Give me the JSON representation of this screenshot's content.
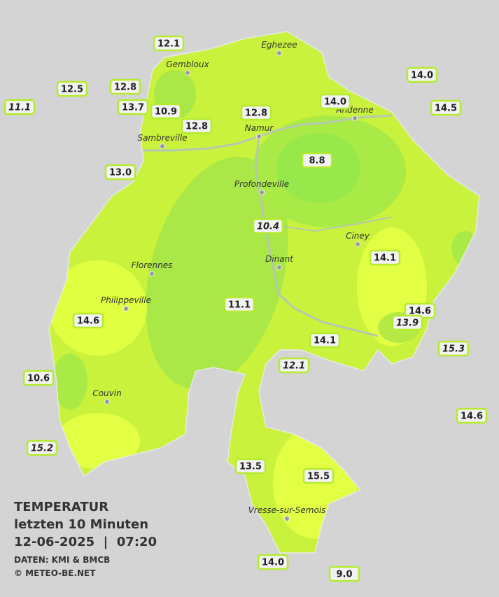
{
  "legend": {
    "title": "TEMPERATUR",
    "period": "letzten 10 Minuten",
    "datetime": "12-06-2025  |  07:20",
    "source": "DATEN: KMI & BMCB",
    "copyright": "© METEO-BE.NET"
  },
  "cities": [
    "Eghezee",
    "Gembloux",
    "Andenne",
    "Namur",
    "Sambreville",
    "Profondeville",
    "Ciney",
    "Dinant",
    "Florennes",
    "Philippeville",
    "Couvin",
    "Vresse-sur-Semois"
  ],
  "stations": [
    "12.1",
    "12.5",
    "11.1",
    "12.8",
    "13.7",
    "10.9",
    "12.8",
    "12.8",
    "14.0",
    "14.0",
    "14.5",
    "13.0",
    "8.8",
    "10.4",
    "14.1",
    "11.1",
    "14.6",
    "14.6",
    "13.9",
    "14.1",
    "15.3",
    "12.1",
    "10.6",
    "14.6",
    "15.2",
    "13.5",
    "15.5",
    "14.0",
    "9.0"
  ]
}
